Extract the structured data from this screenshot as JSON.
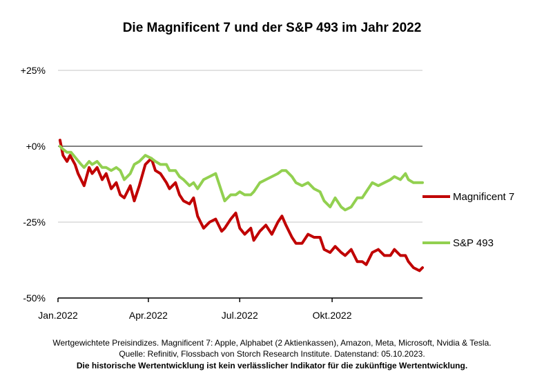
{
  "chart_data": {
    "type": "line",
    "title": "Die Magnificent 7 und der S&P 493 im Jahr 2022",
    "xlabel": "",
    "ylabel": "",
    "ylim": [
      -50,
      25
    ],
    "y_ticks": [
      25,
      0,
      -25,
      -50
    ],
    "y_tick_labels": [
      "+25%",
      "+0%",
      "-25%",
      "-50%"
    ],
    "x_ticks": [
      {
        "label": "Jan.2022",
        "x": "2022-01-01"
      },
      {
        "label": "Apr.2022",
        "x": "2022-04-01"
      },
      {
        "label": "Jul.2022",
        "x": "2022-07-01"
      },
      {
        "label": "Okt.2022",
        "x": "2022-10-01"
      }
    ],
    "x_range": [
      "2022-01-01",
      "2022-12-30"
    ],
    "grid": "horizontal",
    "legend_position": "right",
    "series": [
      {
        "name": "Magnificent 7",
        "color": "#c00000",
        "points": [
          [
            "2022-01-03",
            2
          ],
          [
            "2022-01-06",
            -3
          ],
          [
            "2022-01-10",
            -5
          ],
          [
            "2022-01-13",
            -3
          ],
          [
            "2022-01-18",
            -6
          ],
          [
            "2022-01-21",
            -9
          ],
          [
            "2022-01-27",
            -13
          ],
          [
            "2022-02-01",
            -7
          ],
          [
            "2022-02-04",
            -9
          ],
          [
            "2022-02-09",
            -7
          ],
          [
            "2022-02-14",
            -11
          ],
          [
            "2022-02-18",
            -9
          ],
          [
            "2022-02-23",
            -14
          ],
          [
            "2022-02-28",
            -12
          ],
          [
            "2022-03-04",
            -16
          ],
          [
            "2022-03-08",
            -17
          ],
          [
            "2022-03-14",
            -13
          ],
          [
            "2022-03-18",
            -18
          ],
          [
            "2022-03-23",
            -13
          ],
          [
            "2022-03-29",
            -6
          ],
          [
            "2022-04-04",
            -4
          ],
          [
            "2022-04-08",
            -8
          ],
          [
            "2022-04-13",
            -9
          ],
          [
            "2022-04-19",
            -12
          ],
          [
            "2022-04-22",
            -14
          ],
          [
            "2022-04-28",
            -12
          ],
          [
            "2022-05-02",
            -16
          ],
          [
            "2022-05-06",
            -18
          ],
          [
            "2022-05-12",
            -19
          ],
          [
            "2022-05-16",
            -17
          ],
          [
            "2022-05-20",
            -23
          ],
          [
            "2022-05-26",
            -27
          ],
          [
            "2022-06-01",
            -25
          ],
          [
            "2022-06-07",
            -24
          ],
          [
            "2022-06-13",
            -28
          ],
          [
            "2022-06-16",
            -27
          ],
          [
            "2022-06-22",
            -24
          ],
          [
            "2022-06-27",
            -22
          ],
          [
            "2022-07-01",
            -27
          ],
          [
            "2022-07-06",
            -29
          ],
          [
            "2022-07-12",
            -27
          ],
          [
            "2022-07-15",
            -31
          ],
          [
            "2022-07-21",
            -28
          ],
          [
            "2022-07-27",
            -26
          ],
          [
            "2022-08-02",
            -29
          ],
          [
            "2022-08-08",
            -25
          ],
          [
            "2022-08-12",
            -23
          ],
          [
            "2022-08-16",
            -26
          ],
          [
            "2022-08-22",
            -30
          ],
          [
            "2022-08-26",
            -32
          ],
          [
            "2022-09-01",
            -32
          ],
          [
            "2022-09-07",
            -29
          ],
          [
            "2022-09-13",
            -30
          ],
          [
            "2022-09-19",
            -30
          ],
          [
            "2022-09-23",
            -34
          ],
          [
            "2022-09-29",
            -35
          ],
          [
            "2022-10-04",
            -33
          ],
          [
            "2022-10-10",
            -35
          ],
          [
            "2022-10-14",
            -36
          ],
          [
            "2022-10-20",
            -34
          ],
          [
            "2022-10-26",
            -38
          ],
          [
            "2022-10-31",
            -38
          ],
          [
            "2022-11-04",
            -39
          ],
          [
            "2022-11-10",
            -35
          ],
          [
            "2022-11-16",
            -34
          ],
          [
            "2022-11-22",
            -36
          ],
          [
            "2022-11-28",
            -36
          ],
          [
            "2022-12-02",
            -34
          ],
          [
            "2022-12-08",
            -36
          ],
          [
            "2022-12-13",
            -36
          ],
          [
            "2022-12-16",
            -38
          ],
          [
            "2022-12-21",
            -40
          ],
          [
            "2022-12-27",
            -41
          ],
          [
            "2022-12-30",
            -40
          ]
        ]
      },
      {
        "name": "S&P 493",
        "color": "#92d050",
        "points": [
          [
            "2022-01-03",
            0
          ],
          [
            "2022-01-06",
            -1
          ],
          [
            "2022-01-10",
            -2
          ],
          [
            "2022-01-14",
            -2
          ],
          [
            "2022-01-19",
            -4
          ],
          [
            "2022-01-24",
            -6
          ],
          [
            "2022-01-27",
            -7
          ],
          [
            "2022-02-01",
            -5
          ],
          [
            "2022-02-04",
            -6
          ],
          [
            "2022-02-09",
            -5
          ],
          [
            "2022-02-14",
            -7
          ],
          [
            "2022-02-18",
            -7
          ],
          [
            "2022-02-23",
            -8
          ],
          [
            "2022-02-28",
            -7
          ],
          [
            "2022-03-04",
            -8
          ],
          [
            "2022-03-08",
            -11
          ],
          [
            "2022-03-14",
            -9
          ],
          [
            "2022-03-18",
            -6
          ],
          [
            "2022-03-23",
            -5
          ],
          [
            "2022-03-29",
            -3
          ],
          [
            "2022-04-04",
            -4
          ],
          [
            "2022-04-08",
            -5
          ],
          [
            "2022-04-13",
            -6
          ],
          [
            "2022-04-19",
            -6
          ],
          [
            "2022-04-22",
            -8
          ],
          [
            "2022-04-28",
            -8
          ],
          [
            "2022-05-02",
            -10
          ],
          [
            "2022-05-06",
            -11
          ],
          [
            "2022-05-12",
            -13
          ],
          [
            "2022-05-16",
            -12
          ],
          [
            "2022-05-20",
            -14
          ],
          [
            "2022-05-26",
            -11
          ],
          [
            "2022-06-01",
            -10
          ],
          [
            "2022-06-07",
            -9
          ],
          [
            "2022-06-13",
            -15
          ],
          [
            "2022-06-16",
            -18
          ],
          [
            "2022-06-22",
            -16
          ],
          [
            "2022-06-27",
            -16
          ],
          [
            "2022-07-01",
            -15
          ],
          [
            "2022-07-06",
            -16
          ],
          [
            "2022-07-12",
            -16
          ],
          [
            "2022-07-15",
            -15
          ],
          [
            "2022-07-21",
            -12
          ],
          [
            "2022-07-27",
            -11
          ],
          [
            "2022-08-02",
            -10
          ],
          [
            "2022-08-08",
            -9
          ],
          [
            "2022-08-12",
            -8
          ],
          [
            "2022-08-16",
            -8
          ],
          [
            "2022-08-22",
            -10
          ],
          [
            "2022-08-26",
            -12
          ],
          [
            "2022-09-01",
            -13
          ],
          [
            "2022-09-07",
            -12
          ],
          [
            "2022-09-13",
            -14
          ],
          [
            "2022-09-19",
            -15
          ],
          [
            "2022-09-23",
            -18
          ],
          [
            "2022-09-29",
            -20
          ],
          [
            "2022-10-04",
            -17
          ],
          [
            "2022-10-10",
            -20
          ],
          [
            "2022-10-14",
            -21
          ],
          [
            "2022-10-20",
            -20
          ],
          [
            "2022-10-26",
            -17
          ],
          [
            "2022-10-31",
            -17
          ],
          [
            "2022-11-04",
            -15
          ],
          [
            "2022-11-10",
            -12
          ],
          [
            "2022-11-16",
            -13
          ],
          [
            "2022-11-22",
            -12
          ],
          [
            "2022-11-28",
            -11
          ],
          [
            "2022-12-02",
            -10
          ],
          [
            "2022-12-08",
            -11
          ],
          [
            "2022-12-13",
            -9
          ],
          [
            "2022-12-16",
            -11
          ],
          [
            "2022-12-21",
            -12
          ],
          [
            "2022-12-27",
            -12
          ],
          [
            "2022-12-30",
            -12
          ]
        ]
      }
    ]
  },
  "footer": {
    "line1": "Wertgewichtete Preisindizes. Magnificent 7: Apple, Alphabet (2 Aktienkassen), Amazon, Meta, Microsoft, Nvidia & Tesla.",
    "line2": "Quelle: Refinitiv, Flossbach von Storch Research Institute. Datenstand: 05.10.2023.",
    "line3": "Die historische Wertentwicklung ist kein verlässlicher Indikator für die zukünftige Wertentwicklung."
  }
}
